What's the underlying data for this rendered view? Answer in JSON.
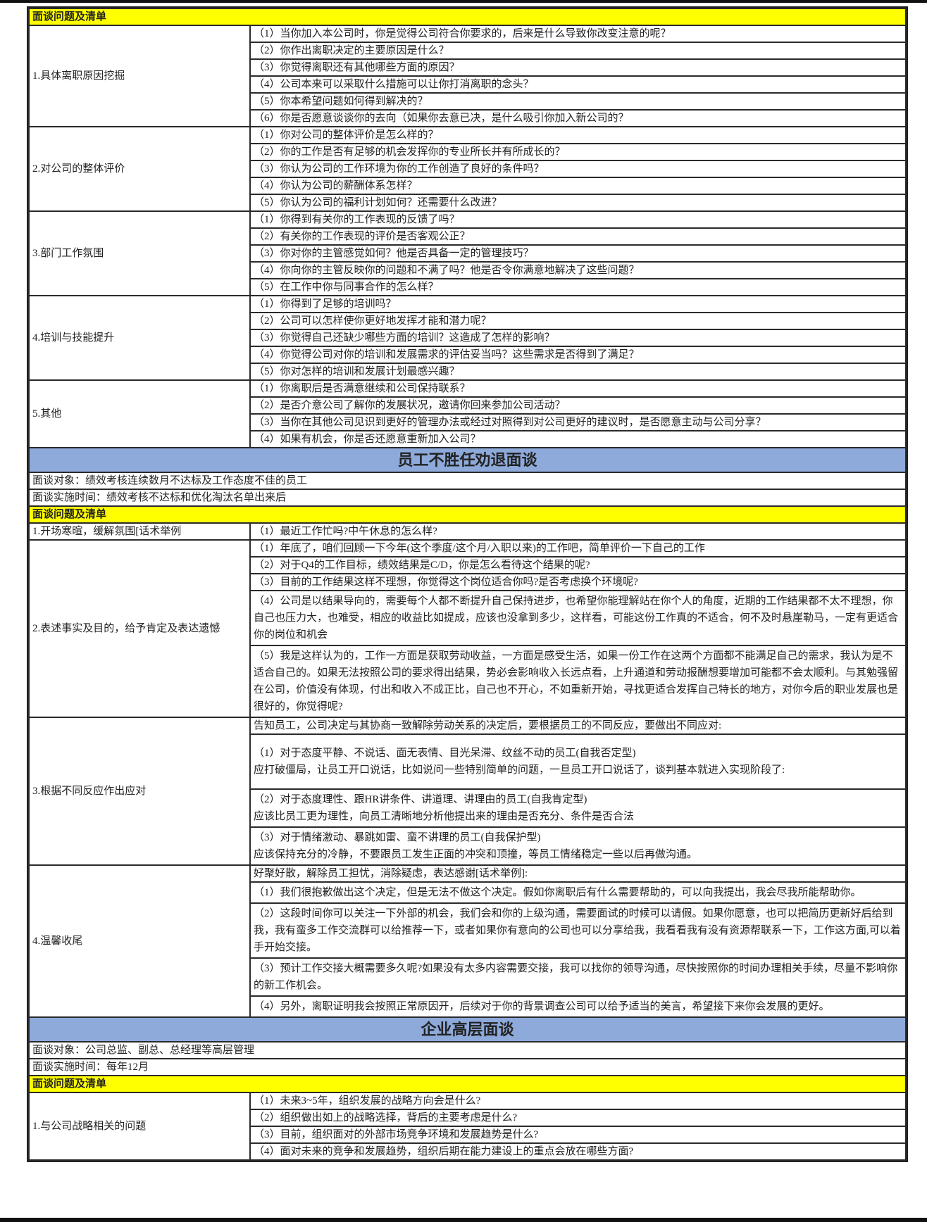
{
  "colors": {
    "yellow_header": "#ffff00",
    "blue_title": "#8eaadb",
    "border": "#2a2a2a"
  },
  "blocks": [
    {
      "type": "yellow",
      "text": "面谈问题及清单"
    },
    {
      "type": "group",
      "label": "1.具体离职原因挖掘",
      "items": [
        {
          "text": "（1）当你加入本公司时，你是觉得公司符合你要求的，后来是什么导致你改变注意的呢？"
        },
        {
          "text": "（2）你作出离职决定的主要原因是什么？"
        },
        {
          "text": "（3）你觉得离职还有其他哪些方面的原因？"
        },
        {
          "text": "（4）公司本来可以采取什么措施可以让你打消离职的念头？"
        },
        {
          "text": "（5）你本希望问题如何得到解决的？"
        },
        {
          "text": "（6）你是否愿意谈谈你的去向（如果你去意已决，是什么吸引你加入新公司的？"
        }
      ]
    },
    {
      "type": "group",
      "label": "2.对公司的整体评价",
      "items": [
        {
          "text": "（1）你对公司的整体评价是怎么样的？"
        },
        {
          "text": "（2）你的工作是否有足够的机会发挥你的专业所长并有所成长的？"
        },
        {
          "text": "（3）你认为公司的工作环境为你的工作创造了良好的条件吗？"
        },
        {
          "text": "（4）你认为公司的薪酬体系怎样？"
        },
        {
          "text": "（5）你认为公司的福利计划如何？还需要什么改进？"
        }
      ]
    },
    {
      "type": "group",
      "label": "3.部门工作氛围",
      "items": [
        {
          "text": "（1）你得到有关你的工作表现的反馈了吗？"
        },
        {
          "text": "（2）有关你的工作表现的评价是否客观公正？"
        },
        {
          "text": "（3）你对你的主管感觉如何？他是否具备一定的管理技巧？"
        },
        {
          "text": "（4）你向你的主管反映你的问题和不满了吗？他是否令你满意地解决了这些问题？"
        },
        {
          "text": "（5）在工作中你与同事合作的怎么样？"
        }
      ]
    },
    {
      "type": "group",
      "label": "4.培训与技能提升",
      "items": [
        {
          "text": "（1）你得到了足够的培训吗？"
        },
        {
          "text": "（2）公司可以怎样使你更好地发挥才能和潜力呢？"
        },
        {
          "text": "（3）你觉得自己还缺少哪些方面的培训？这造成了怎样的影响？"
        },
        {
          "text": "（4）你觉得公司对你的培训和发展需求的评估妥当吗？这些需求是否得到了满足？"
        },
        {
          "text": "（5）你对怎样的培训和发展计划最感兴趣？"
        }
      ]
    },
    {
      "type": "group",
      "label": "5.其他",
      "items": [
        {
          "text": "（1）你离职后是否满意继续和公司保持联系？"
        },
        {
          "text": "（2）是否介意公司了解你的发展状况，邀请你回来参加公司活动？"
        },
        {
          "text": "（3）当你在其他公司见识到更好的管理办法或经过对照得到对公司更好的建议时，是否愿意主动与公司分享？"
        },
        {
          "text": "（4）如果有机会，你是否还愿意重新加入公司？"
        }
      ]
    },
    {
      "type": "blue",
      "text": "员工不胜任劝退面谈"
    },
    {
      "type": "info",
      "text": "面谈对象：绩效考核连续数月不达标及工作态度不佳的员工"
    },
    {
      "type": "info",
      "text": "面谈实施时间：绩效考核不达标和优化淘汰名单出来后"
    },
    {
      "type": "yellow",
      "text": "面谈问题及清单"
    },
    {
      "type": "group",
      "label": "1.开场寒暄，缓解氛围[话术举例",
      "items": [
        {
          "text": "（1）最近工作忙吗?中午休息的怎么样?"
        }
      ]
    },
    {
      "type": "group",
      "label": "2.表述事实及目的，给予肯定及表达遗憾",
      "items": [
        {
          "text": "（1）年底了，咱们回顾一下今年(这个季度/这个月/入职以来)的工作吧，简单评价一下自己的工作"
        },
        {
          "text": "（2）对于Q4的工作目标，绩效结果是C/D，你是怎么看待这个结果的呢?"
        },
        {
          "text": "（3）目前的工作结果这样不理想，你觉得这个岗位适合你吗?是否考虑换个环境呢?"
        },
        {
          "text": "（4）公司是以结果导向的，需要每个人都不断提升自己保持进步，也希望你能理解站在你个人的角度，近期的工作结果都不太不理想，你自己也压力大，也难受，相应的收益比如提成，应该也没拿到多少，这样看，可能这份工作真的不适合，何不及时悬崖勒马，一定有更适合你的岗位和机会",
          "multi": true
        },
        {
          "text": "（5）我是这样认为的，工作一方面是获取劳动收益，一方面是感受生活，如果一份工作在这两个方面都不能满足自己的需求，我认为是不适合自己的。如果无法按照公司的要求得出结果，势必会影响收入长远点看，上升通道和劳动报酬想要增加可能都不会太顺利。与其勉强留在公司，价值没有体现，付出和收入不成正比，自己也不开心，不如重新开始，寻找更适合发挥自己特长的地方，对你今后的职业发展也是很好的，你觉得呢?",
          "multi": true
        }
      ]
    },
    {
      "type": "group",
      "label": "3.根据不同反应作出应对",
      "items": [
        {
          "text": "告知员工，公司决定与其协商一致解除劳动关系的决定后，要根据员工的不同反应，要做出不同应对:"
        },
        {
          "text": "（1）对于态度平静、不说话、面无表情、目光呆滞、纹丝不动的员工(自我否定型)",
          "response": "应打破僵局，让员工开口说话，比如说问一些特别简单的问题，一旦员工开口说话了，谈判基本就进入实现阶段了:",
          "multi": true,
          "tall": true
        },
        {
          "text": "（2）对于态度理性、跟HR讲条件、讲道理、讲理由的员工(自我肯定型)",
          "response": "应该比员工更为理性，向员工清晰地分析他提出来的理由是否充分、条件是否合法",
          "multi": true
        },
        {
          "text": "（3）对于情绪激动、暴跳如雷、蛮不讲理的员工(自我保护型)",
          "response": "应该保持充分的冷静，不要跟员工发生正面的冲突和顶撞，等员工情绪稳定一些以后再做沟通。",
          "multi": true
        }
      ]
    },
    {
      "type": "group",
      "label": "4.温馨收尾",
      "items": [
        {
          "text": "好聚好散，解除员工担忧，消除疑虑，表达感谢[话术举例]:"
        },
        {
          "text": "（1）我们很抱歉做出这个决定，但是无法不做这个决定。假如你离职后有什么需要帮助的，可以向我提出，我会尽我所能帮助你。",
          "multi": true
        },
        {
          "text": "（2）这段时间你可以关注一下外部的机会，我们会和你的上级沟通，需要面试的时候可以请假。如果你愿意，也可以把简历更新好后给到我，我有蛮多工作交流群可以给推荐一下，或者如果你有意向的公司也可以分享给我，我看看我有没有资源帮联系一下，工作这方面,可以着手开始交接。",
          "multi": true
        },
        {
          "text": "（3）预计工作交接大概需要多久呢?如果没有太多内容需要交接，我可以找你的领导沟通，尽快按照你的时间办理相关手续，尽量不影响你的新工作机会。",
          "multi": true
        },
        {
          "text": "（4）另外，离职证明我会按照正常原因开，后续对于你的背景调查公司可以给予适当的美言，希望接下来你会发展的更好。",
          "multi": true
        }
      ]
    },
    {
      "type": "blue",
      "text": "企业高层面谈"
    },
    {
      "type": "info",
      "text": "面谈对象：公司总监、副总、总经理等高层管理"
    },
    {
      "type": "info",
      "text": "面谈实施时间：每年12月"
    },
    {
      "type": "yellow",
      "text": "面谈问题及清单"
    },
    {
      "type": "group",
      "label": "1.与公司战略相关的问题",
      "items": [
        {
          "text": "（1）未来3~5年，组织发展的战略方向会是什么?"
        },
        {
          "text": "（2）组织做出如上的战略选择，背后的主要考虑是什么?"
        },
        {
          "text": "（3）目前，组织面对的外部市场竞争环境和发展趋势是什么?"
        },
        {
          "text": "（4）面对未来的竞争和发展趋势，组织后期在能力建设上的重点会放在哪些方面?"
        }
      ]
    }
  ]
}
